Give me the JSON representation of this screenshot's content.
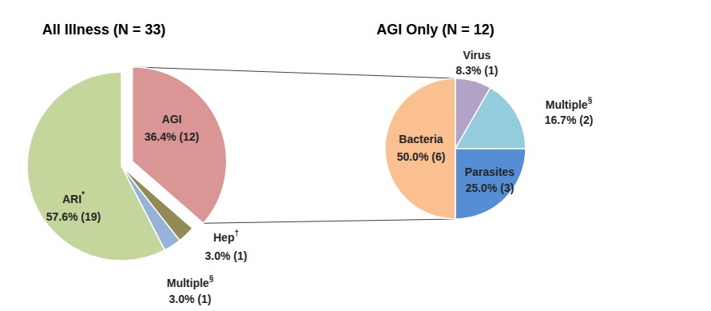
{
  "chart_data": [
    {
      "type": "pie",
      "title": "All Illness (N = 33)",
      "categories": [
        "AGI",
        "Hep†",
        "Multiple§",
        "ARI*"
      ],
      "values": [
        36.4,
        3.0,
        3.0,
        57.6
      ],
      "value_labels": [
        "36.4% (12)",
        "3.0% (1)",
        "3.0% (1)",
        "57.6% (19)"
      ],
      "colors": [
        "#d99694",
        "#948a54",
        "#95b3d7",
        "#c3d69b"
      ],
      "data_labels": true
    },
    {
      "type": "pie",
      "title": "AGI Only (N = 12)",
      "categories": [
        "Virus",
        "Multiple§",
        "Parasites",
        "Bacteria"
      ],
      "values": [
        8.3,
        16.7,
        25.0,
        50.0
      ],
      "value_labels": [
        "8.3% (1)",
        "16.7% (2)",
        "25.0% (3)",
        "50.0% (6)"
      ],
      "colors": [
        "#b3a2c7",
        "#93cddd",
        "#558ed5",
        "#fac090"
      ],
      "data_labels": true
    }
  ]
}
